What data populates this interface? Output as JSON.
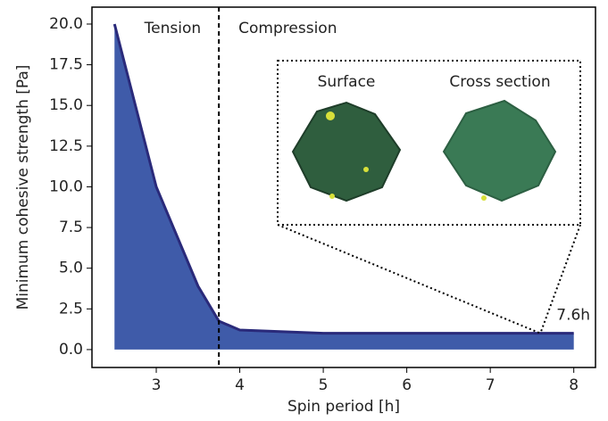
{
  "chart_data": {
    "type": "area",
    "xlabel": "Spin period [h]",
    "ylabel": "Minimum cohesive strength [Pa]",
    "x": [
      2.5,
      3,
      3.5,
      3.75,
      4,
      5,
      6,
      7,
      8
    ],
    "values": [
      20,
      10,
      3.9,
      1.75,
      1.2,
      1.0,
      1.0,
      1.0,
      1.0
    ],
    "color": "#3f5ba9",
    "line_color": "#2a2a7a",
    "xlim": [
      2.23,
      8.26
    ],
    "ylim": [
      -1.1,
      21.04
    ],
    "xticks": [
      3,
      4,
      5,
      6,
      7,
      8
    ],
    "yticks": [
      {
        "value": 0,
        "label": "0.0"
      },
      {
        "value": 2.5,
        "label": "2.5"
      },
      {
        "value": 5,
        "label": "5.0"
      },
      {
        "value": 7.5,
        "label": "7.5"
      },
      {
        "value": 10,
        "label": "10.0"
      },
      {
        "value": 12.5,
        "label": "12.5"
      },
      {
        "value": 15,
        "label": "15.0"
      },
      {
        "value": 17.5,
        "label": "17.5"
      },
      {
        "value": 20,
        "label": "20.0"
      }
    ],
    "boundary": 3.75,
    "regions": [
      "Tension",
      "Compression"
    ],
    "annotation": {
      "x": 7.6,
      "y": 1.0,
      "label": "7.6h"
    },
    "inset_titles": [
      "Surface",
      "Cross section"
    ]
  }
}
